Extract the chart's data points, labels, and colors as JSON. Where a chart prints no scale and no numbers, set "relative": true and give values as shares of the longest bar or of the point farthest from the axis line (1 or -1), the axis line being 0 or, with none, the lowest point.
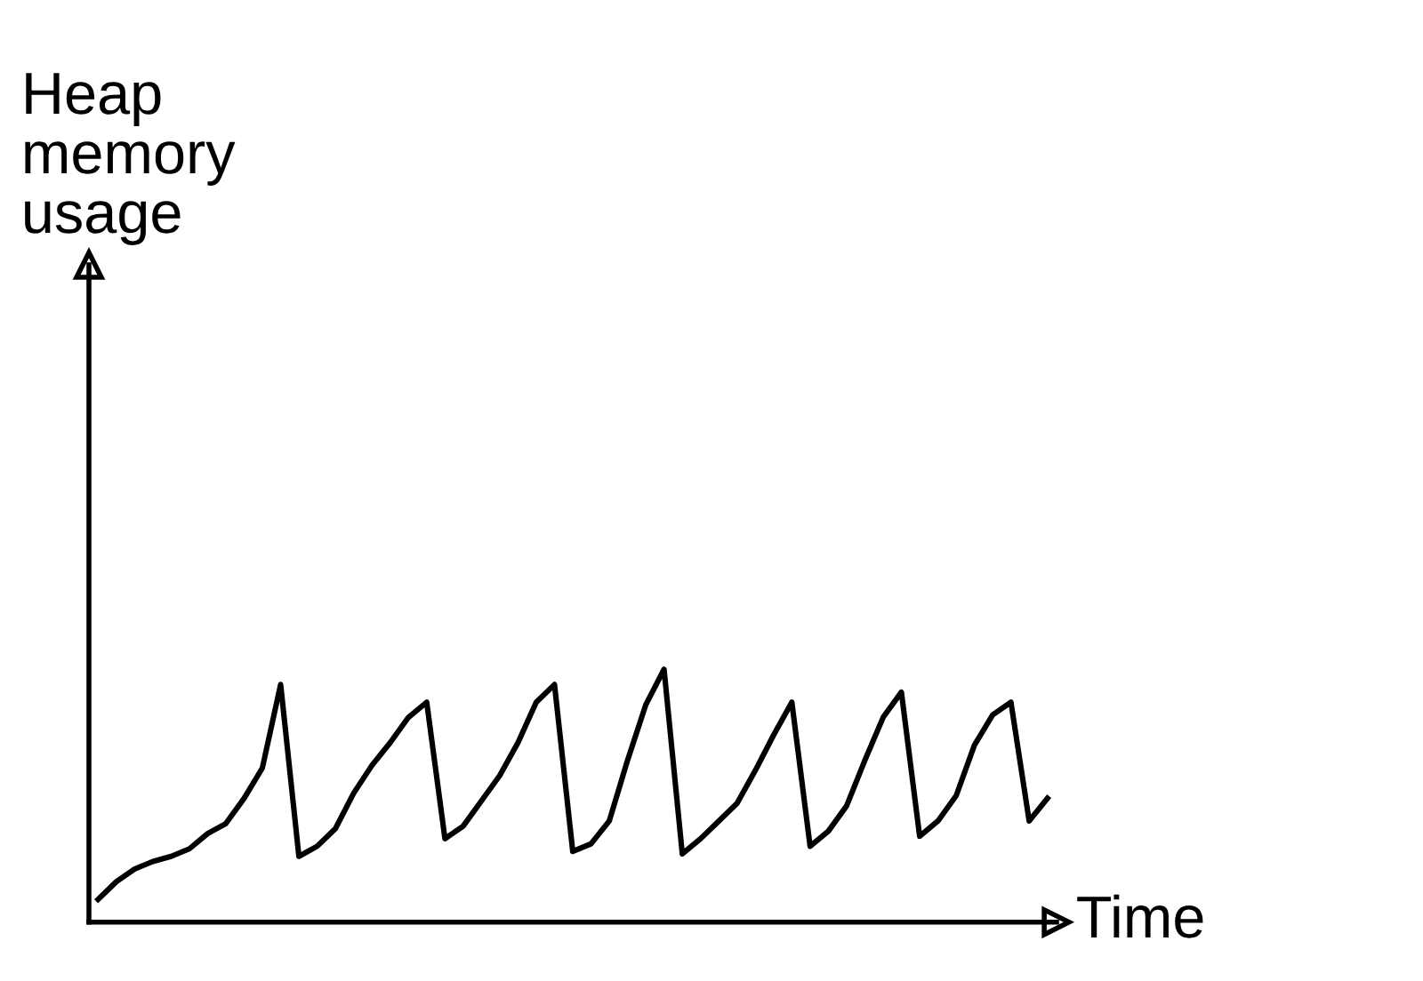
{
  "chart_data": {
    "type": "line",
    "relative": true,
    "xlabel": "Time",
    "annotations": [
      "Heap memory usage"
    ],
    "marker": "none",
    "line_style": "solid",
    "categories": [
      null,
      null,
      null,
      null,
      null,
      null,
      null,
      null,
      null,
      null,
      null,
      null,
      null,
      null,
      null,
      null,
      null,
      null,
      null,
      null,
      null,
      null,
      null,
      null,
      null,
      null,
      null,
      null,
      null,
      null,
      null,
      null,
      null,
      null,
      null,
      null,
      null,
      null,
      null,
      null,
      null,
      null,
      null,
      null,
      null,
      null,
      null,
      null,
      null,
      null,
      null,
      null,
      null
    ],
    "series": [
      {
        "color": "#000000",
        "values": [
          0.09,
          0.16,
          0.21,
          0.24,
          0.26,
          0.29,
          0.35,
          0.39,
          0.49,
          0.61,
          0.94,
          0.26,
          0.3,
          0.37,
          0.51,
          0.62,
          0.71,
          0.81,
          0.87,
          0.33,
          0.38,
          0.48,
          0.58,
          0.71,
          0.87,
          0.94,
          0.28,
          0.31,
          0.4,
          0.64,
          0.86,
          1,
          0.27,
          0.33,
          0.4,
          0.47,
          0.6,
          0.74,
          0.87,
          0.3,
          0.36,
          0.46,
          0.64,
          0.81,
          0.91,
          0.34,
          0.4,
          0.5,
          0.7,
          0.82,
          0.87,
          0.4,
          0.49
        ]
      }
    ]
  }
}
